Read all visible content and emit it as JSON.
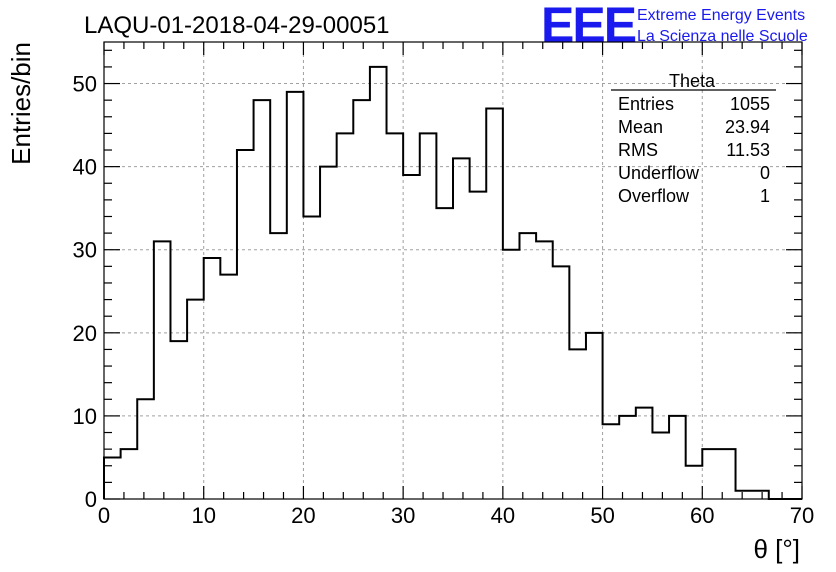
{
  "header": {
    "run_title": "LAQU-01-2018-04-29-00051",
    "logo_letters": "EEE",
    "logo_line1": "Extreme Energy Events",
    "logo_line2": "La Scienza nelle Scuole"
  },
  "stats_box": {
    "title": "Theta",
    "rows": [
      {
        "label": "Entries",
        "value": "1055"
      },
      {
        "label": "Mean",
        "value": "23.94"
      },
      {
        "label": "RMS",
        "value": "11.53"
      },
      {
        "label": "Underflow",
        "value": "0"
      },
      {
        "label": "Overflow",
        "value": "1"
      }
    ]
  },
  "chart_data": {
    "type": "bar",
    "title": "LAQU-01-2018-04-29-00051",
    "xlabel": "θ [°]",
    "ylabel": "Entries/bin",
    "xlim": [
      0,
      70
    ],
    "ylim": [
      0,
      55
    ],
    "grid": true,
    "bin_width": 1.6667,
    "x_ticks": [
      0,
      10,
      20,
      30,
      40,
      50,
      60,
      70
    ],
    "y_ticks": [
      0,
      10,
      20,
      30,
      40,
      50
    ],
    "values": [
      5,
      6,
      12,
      31,
      19,
      24,
      29,
      27,
      42,
      48,
      32,
      49,
      34,
      40,
      44,
      48,
      52,
      44,
      39,
      44,
      35,
      41,
      37,
      47,
      30,
      32,
      31,
      28,
      18,
      20,
      9,
      10,
      11,
      8,
      10,
      4,
      6,
      6,
      1,
      1,
      0,
      0
    ]
  }
}
